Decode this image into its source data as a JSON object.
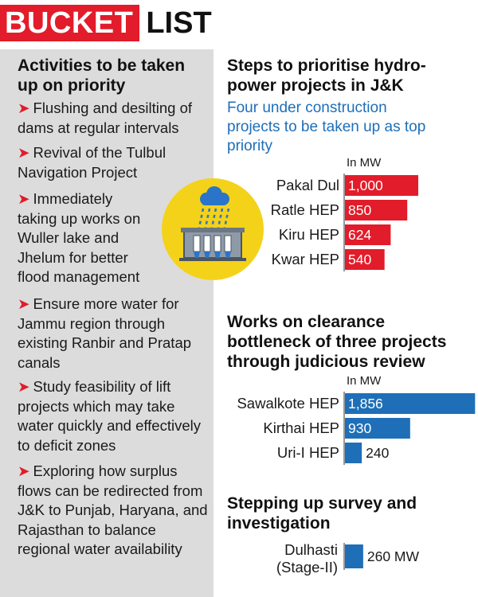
{
  "banner": {
    "red": "BUCKET",
    "black": "LIST"
  },
  "left": {
    "title": "Activities to be taken up on priority",
    "items": [
      "Flushing and desilting of dams at regular intervals",
      "Revival of the Tulbul Navigation Project",
      "Immediately taking up works on Wuller lake and Jhelum for better flood management",
      "Ensure more water for Jammu region through existing Ranbir and Pratap canals",
      "Study feasibility of lift projects which may take water quickly and effectively to deficit zones",
      "Exploring how surplus flows can be redirected from J&K to Punjab, Haryana, and Rajasthan to balance regional water availability"
    ],
    "arrow": "➤"
  },
  "icon": "dam-rain-icon",
  "colors": {
    "red": "#e21c2a",
    "blue": "#1e6fb8",
    "yellow": "#f4d21a",
    "grey": "#dcdcdc"
  },
  "sections": {
    "s1": {
      "title": "Steps to prioritise hydro-power projects in J&K",
      "subtitle": "Four under construction projects to be taken up as top priority",
      "unit": "In MW"
    },
    "s2": {
      "title": "Works on clearance bottleneck of three projects through judicious review",
      "unit": "In MW"
    },
    "s3": {
      "title": "Stepping up survey and investigation",
      "label_line1": "Dulhasti",
      "label_line2": "(Stage-II)",
      "value_label": "260 MW"
    }
  },
  "chart_data": [
    {
      "type": "bar",
      "orientation": "horizontal",
      "unit": "In MW",
      "color": "#e21c2a",
      "categories": [
        "Pakal Dul",
        "Ratle HEP",
        "Kiru HEP",
        "Kwar HEP"
      ],
      "values": [
        1000,
        850,
        624,
        540
      ],
      "labels": [
        "1,000",
        "850",
        "624",
        "540"
      ]
    },
    {
      "type": "bar",
      "orientation": "horizontal",
      "unit": "In MW",
      "color": "#1e6fb8",
      "categories": [
        "Sawalkote HEP",
        "Kirthai HEP",
        "Uri-I HEP"
      ],
      "values": [
        1856,
        930,
        240
      ],
      "labels": [
        "1,856",
        "930",
        "240"
      ]
    },
    {
      "type": "bar",
      "orientation": "horizontal",
      "unit": "MW",
      "color": "#1e6fb8",
      "categories": [
        "Dulhasti (Stage-II)"
      ],
      "values": [
        260
      ],
      "labels": [
        "260 MW"
      ]
    }
  ]
}
